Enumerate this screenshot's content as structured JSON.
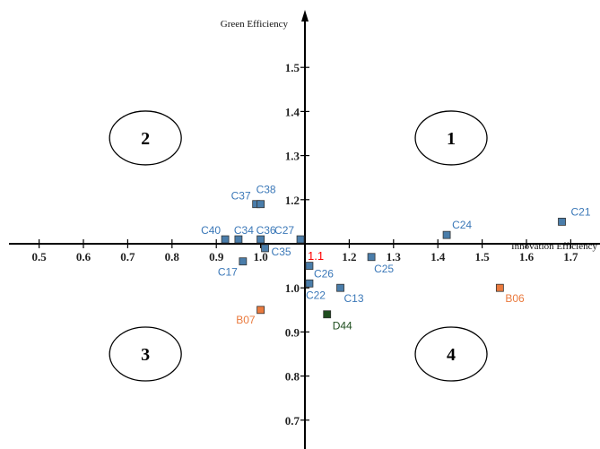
{
  "chart_data": {
    "type": "scatter",
    "title": "",
    "xlabel": "Innovation Efficiency",
    "ylabel": "Green Efficiency",
    "origin_label": "1.1",
    "xlim": [
      0.45,
      1.75
    ],
    "ylim": [
      0.65,
      1.6
    ],
    "x_ticks": [
      0.5,
      0.6,
      0.7,
      0.8,
      0.9,
      1.0,
      1.1,
      1.2,
      1.3,
      1.4,
      1.5,
      1.6,
      1.7
    ],
    "x_tick_labels": [
      "0.5",
      "0.6",
      "0.7",
      "0.8",
      "0.9",
      "1.0",
      "",
      "1.2",
      "1.3",
      "1.4",
      "1.5",
      "1.6",
      "1.7"
    ],
    "y_ticks": [
      0.7,
      0.8,
      0.9,
      1.0,
      1.2,
      1.3,
      1.4,
      1.5
    ],
    "y_tick_labels": [
      "0.7",
      "0.8",
      "0.9",
      "1.0",
      "1.2",
      "1.3",
      "1.4",
      "1.5"
    ],
    "grid": false,
    "colors": {
      "blue": "#4a7daa",
      "blue_label": "#3b78b8",
      "orange": "#ea7a3e",
      "green": "#1e4d1e"
    },
    "points": [
      {
        "label": "C21",
        "x": 1.68,
        "y": 1.15,
        "color": "blue"
      },
      {
        "label": "C24",
        "x": 1.42,
        "y": 1.12,
        "color": "blue"
      },
      {
        "label": "C37",
        "x": 0.99,
        "y": 1.19,
        "color": "blue"
      },
      {
        "label": "C38",
        "x": 1.0,
        "y": 1.19,
        "color": "blue"
      },
      {
        "label": "C40",
        "x": 0.92,
        "y": 1.11,
        "color": "blue"
      },
      {
        "label": "C34",
        "x": 0.95,
        "y": 1.11,
        "color": "blue"
      },
      {
        "label": "C36",
        "x": 1.0,
        "y": 1.11,
        "color": "blue"
      },
      {
        "label": "C27",
        "x": 1.09,
        "y": 1.11,
        "color": "blue"
      },
      {
        "label": "C17",
        "x": 0.96,
        "y": 1.06,
        "color": "blue"
      },
      {
        "label": "C35",
        "x": 1.01,
        "y": 1.09,
        "color": "blue"
      },
      {
        "label": "C25",
        "x": 1.25,
        "y": 1.07,
        "color": "blue"
      },
      {
        "label": "C26",
        "x": 1.11,
        "y": 1.05,
        "color": "blue"
      },
      {
        "label": "C22",
        "x": 1.11,
        "y": 1.01,
        "color": "blue"
      },
      {
        "label": "C13",
        "x": 1.18,
        "y": 1.0,
        "color": "blue"
      },
      {
        "label": "B06",
        "x": 1.54,
        "y": 1.0,
        "color": "orange"
      },
      {
        "label": "B07",
        "x": 1.0,
        "y": 0.95,
        "color": "orange"
      },
      {
        "label": "D44",
        "x": 1.15,
        "y": 0.94,
        "color": "green"
      }
    ],
    "quadrants": [
      {
        "label": "1",
        "x": 1.43,
        "y": 1.34
      },
      {
        "label": "2",
        "x": 0.74,
        "y": 1.34
      },
      {
        "label": "3",
        "x": 0.74,
        "y": 0.85
      },
      {
        "label": "4",
        "x": 1.43,
        "y": 0.85
      }
    ]
  }
}
